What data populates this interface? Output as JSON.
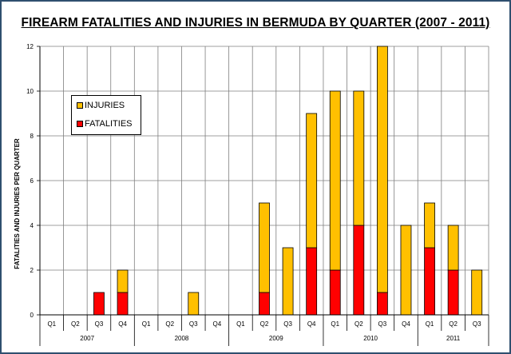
{
  "chart_data": {
    "type": "bar",
    "stacked": true,
    "title": "FIREARM FATALITIES AND INJURIES IN BERMUDA BY QUARTER (2007 - 2011)",
    "ylabel": "FATALITIES AND INJURIES PER QUARTER",
    "xlabel": "",
    "ylim": [
      0,
      12
    ],
    "yticks": [
      0,
      2,
      4,
      6,
      8,
      10,
      12
    ],
    "grid": true,
    "legend_placement": "upper-left",
    "categories": [
      "Q1",
      "Q2",
      "Q3",
      "Q4",
      "Q1",
      "Q2",
      "Q3",
      "Q4",
      "Q1",
      "Q2",
      "Q3",
      "Q4",
      "Q1",
      "Q2",
      "Q3",
      "Q4",
      "Q1",
      "Q2",
      "Q3"
    ],
    "years": [
      {
        "label": "2007",
        "count": 4
      },
      {
        "label": "2008",
        "count": 4
      },
      {
        "label": "2009",
        "count": 4
      },
      {
        "label": "2010",
        "count": 4
      },
      {
        "label": "2011",
        "count": 3
      }
    ],
    "legend": [
      {
        "name": "INJURIES",
        "color": "#ffc000"
      },
      {
        "name": "FATALITIES",
        "color": "#ff0000"
      }
    ],
    "series": [
      {
        "name": "FATALITIES",
        "color": "#ff0000",
        "values": [
          0,
          0,
          1,
          1,
          0,
          0,
          0,
          0,
          0,
          1,
          0,
          3,
          2,
          4,
          1,
          0,
          3,
          2,
          0
        ]
      },
      {
        "name": "INJURIES",
        "color": "#ffc000",
        "values": [
          0,
          0,
          0,
          1,
          0,
          0,
          1,
          0,
          0,
          4,
          3,
          6,
          8,
          6,
          11,
          4,
          2,
          2,
          2
        ]
      }
    ]
  }
}
